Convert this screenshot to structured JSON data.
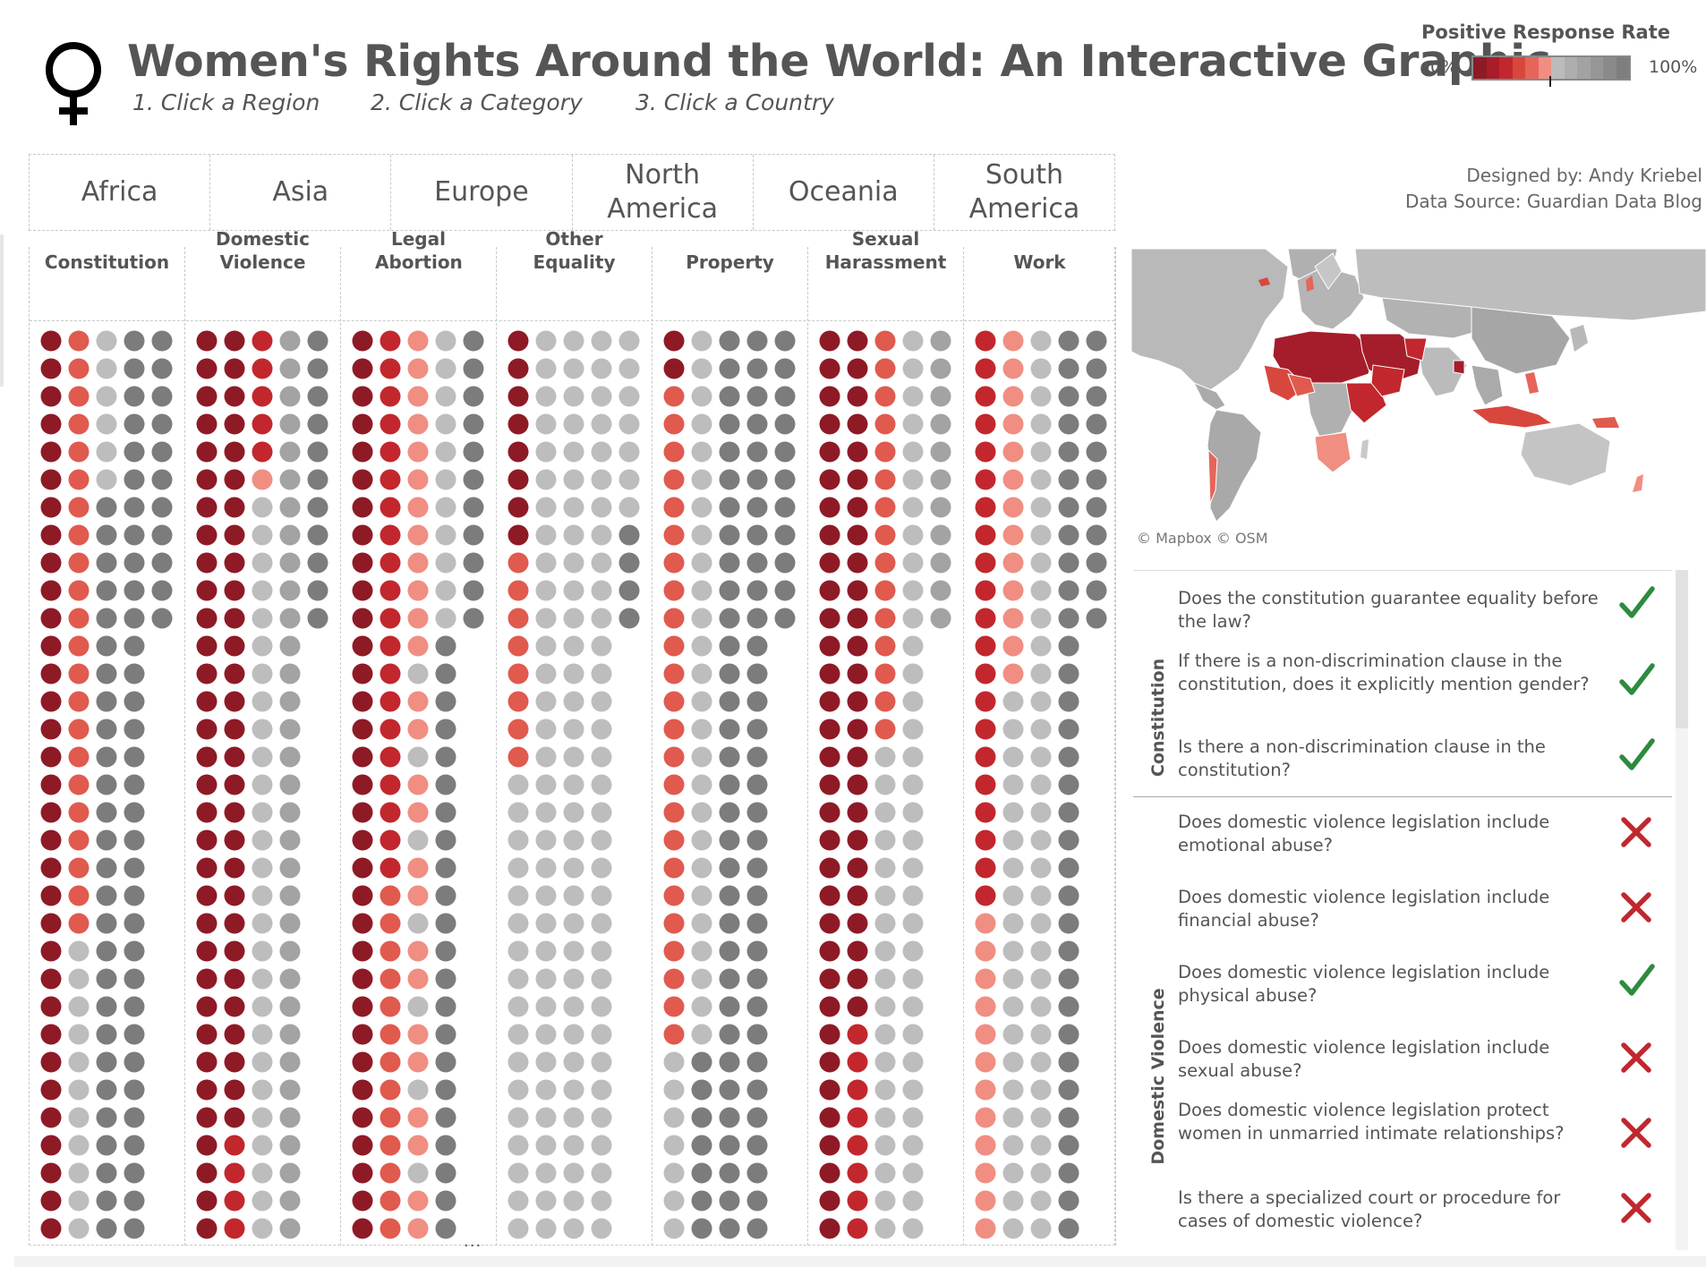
{
  "header": {
    "title": "Women's Rights Around the World: An Interactive Graphic",
    "steps": [
      "1. Click a Region",
      "2. Click a Category",
      "3. Click a Country"
    ],
    "symbol_icon": "venus-icon"
  },
  "legend": {
    "title": "Positive Response Rate",
    "min_label": "0%",
    "max_label": "100%",
    "colors": [
      "#8e1a26",
      "#a81d29",
      "#c2272d",
      "#d8473d",
      "#e6655b",
      "#f08e82",
      "#bbbbbb",
      "#aeaeae",
      "#a2a2a2",
      "#969696",
      "#8a8a8a",
      "#7e7e7e"
    ]
  },
  "regions": [
    {
      "label": "Africa"
    },
    {
      "label": "Asia"
    },
    {
      "label": "Europe"
    },
    {
      "label": "North America"
    },
    {
      "label": "Oceania"
    },
    {
      "label": "South America"
    }
  ],
  "credits": {
    "designer": "Designed by: Andy Kriebel",
    "source": "Data Source: Guardian Data Blog"
  },
  "colors": {
    "c1": "#8e1a26",
    "c2": "#c2272d",
    "c3": "#d8473d",
    "c4": "#e05a4e",
    "c5": "#f08e82",
    "gl": "#bdbdbd",
    "gm": "#a3a3a3",
    "gd": "#7c7c7c",
    "check": "#2e8b3e",
    "cross": "#c0282f"
  },
  "categories": [
    {
      "label": "Constitution"
    },
    {
      "label": "Domestic Violence"
    },
    {
      "label": "Legal Abortion"
    },
    {
      "label": "Other Equality"
    },
    {
      "label": "Property"
    },
    {
      "label": "Sexual Harassment"
    },
    {
      "label": "Work"
    }
  ],
  "dot_rows_summary": {
    "rows": 33,
    "five_col_rows": 11,
    "more_indicator": "..."
  },
  "map": {
    "credit": "© Mapbox  © OSM"
  },
  "questions": {
    "sections": [
      {
        "label": "Constitution",
        "items": [
          {
            "text": "Does the constitution guarantee equality before the law?",
            "answer": "yes"
          },
          {
            "text": "If there is a non-discrimination clause in the constitution, does it explicitly mention gender?",
            "answer": "yes"
          },
          {
            "text": "Is there a non-discrimination clause in the constitution?",
            "answer": "yes"
          }
        ]
      },
      {
        "label": "Domestic Violence",
        "items": [
          {
            "text": "Does domestic violence legislation include emotional abuse?",
            "answer": "no"
          },
          {
            "text": "Does domestic violence legislation include financial abuse?",
            "answer": "no"
          },
          {
            "text": "Does domestic violence legislation include physical abuse?",
            "answer": "yes"
          },
          {
            "text": "Does domestic violence legislation include sexual abuse?",
            "answer": "no"
          },
          {
            "text": "Does domestic violence legislation protect women in unmarried intimate relationships?",
            "answer": "no"
          },
          {
            "text": "Is there a specialized court or procedure for cases of domestic violence?",
            "answer": "no"
          }
        ]
      }
    ]
  }
}
